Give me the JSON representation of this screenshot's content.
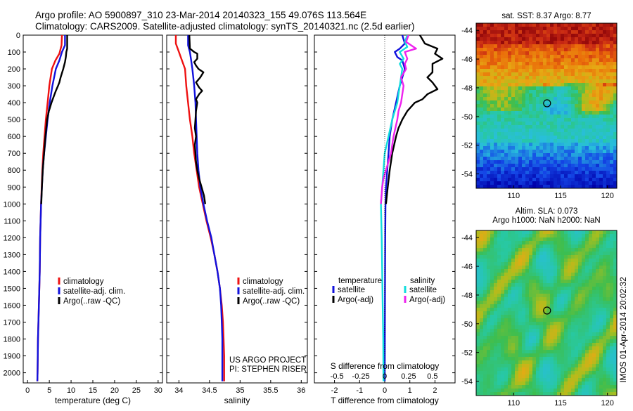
{
  "title_line1": "Argo profile: AO 5900897_310 23-Mar-2014 20140323_155 49.076S 113.564E",
  "title_line2": "Climatology: CARS2009. Satellite-adjusted climatology: synTS_20140321.nc (2.5d earlier)",
  "vertical_note": "IMOS 01-Apr-2014 20:02:32",
  "colors": {
    "climatology": "#ee1111",
    "satellite": "#1111dd",
    "argo": "#000000",
    "sat_salinity": "#11dddd",
    "argo_salinity": "#ee22ee"
  },
  "chart_data": [
    {
      "type": "line",
      "panel": "temperature",
      "xlabel": "temperature (deg C)",
      "xlim": [
        -1,
        31
      ],
      "ylim": [
        2060,
        0
      ],
      "xticks": [
        "0",
        "5",
        "10",
        "15",
        "20",
        "25",
        "30"
      ],
      "yticks": [
        "0",
        "100",
        "200",
        "300",
        "400",
        "500",
        "600",
        "700",
        "800",
        "900",
        "1000",
        "1100",
        "1200",
        "1300",
        "1400",
        "1500",
        "1600",
        "1700",
        "1800",
        "1900",
        "2000"
      ],
      "legend": [
        "climatology",
        "satellite-adj. clim.",
        "Argo(..raw -QC)"
      ],
      "series": [
        {
          "name": "climatology",
          "color": "climatology",
          "points": [
            [
              7.9,
              0
            ],
            [
              7.8,
              60
            ],
            [
              7.3,
              110
            ],
            [
              6.4,
              150
            ],
            [
              5.6,
              200
            ],
            [
              5.0,
              300
            ],
            [
              4.6,
              400
            ],
            [
              4.2,
              500
            ],
            [
              3.9,
              600
            ],
            [
              3.6,
              700
            ],
            [
              3.4,
              800
            ],
            [
              3.25,
              900
            ],
            [
              3.1,
              1000
            ],
            [
              2.9,
              1200
            ],
            [
              2.8,
              1400
            ],
            [
              2.6,
              1600
            ],
            [
              2.4,
              1800
            ],
            [
              2.3,
              2000
            ],
            [
              2.25,
              2050
            ]
          ]
        },
        {
          "name": "satellite-adj. clim.",
          "color": "satellite",
          "points": [
            [
              8.6,
              0
            ],
            [
              8.6,
              60
            ],
            [
              7.9,
              100
            ],
            [
              7.3,
              150
            ],
            [
              6.5,
              200
            ],
            [
              5.7,
              300
            ],
            [
              5.1,
              400
            ],
            [
              4.6,
              500
            ],
            [
              4.2,
              600
            ],
            [
              3.8,
              700
            ],
            [
              3.5,
              800
            ],
            [
              3.3,
              900
            ],
            [
              3.1,
              1000
            ],
            [
              2.9,
              1200
            ],
            [
              2.8,
              1400
            ],
            [
              2.6,
              1600
            ],
            [
              2.4,
              1800
            ],
            [
              2.3,
              2000
            ],
            [
              2.25,
              2050
            ]
          ]
        },
        {
          "name": "Argo(..raw -QC)",
          "color": "argo",
          "points": [
            [
              9.1,
              0
            ],
            [
              9.1,
              80
            ],
            [
              8.9,
              100
            ],
            [
              8.8,
              130
            ],
            [
              8.6,
              160
            ],
            [
              8.2,
              200
            ],
            [
              7.6,
              250
            ],
            [
              7.3,
              280
            ],
            [
              7.0,
              300
            ],
            [
              6.5,
              330
            ],
            [
              6.2,
              350
            ],
            [
              5.5,
              400
            ],
            [
              4.9,
              450
            ],
            [
              4.5,
              500
            ],
            [
              4.1,
              600
            ],
            [
              3.8,
              700
            ],
            [
              3.5,
              800
            ],
            [
              3.3,
              900
            ],
            [
              3.15,
              1000
            ]
          ]
        }
      ]
    },
    {
      "type": "line",
      "panel": "salinity",
      "xlabel": "salinity",
      "xlim": [
        33.8,
        36.1
      ],
      "ylim": [
        2060,
        0
      ],
      "xticks": [
        "34",
        "34.5",
        "35",
        "35.5",
        "36"
      ],
      "legend": [
        "climatology",
        "satellite-adj. clim.",
        "Argo(..raw -QC)"
      ],
      "annotation": [
        "US ARGO PROJECT",
        "PI: STEPHEN RISER"
      ],
      "series": [
        {
          "name": "climatology",
          "color": "climatology",
          "points": [
            [
              33.95,
              0
            ],
            [
              33.95,
              50
            ],
            [
              34.0,
              100
            ],
            [
              34.05,
              150
            ],
            [
              34.1,
              200
            ],
            [
              34.12,
              300
            ],
            [
              34.15,
              400
            ],
            [
              34.18,
              500
            ],
            [
              34.22,
              600
            ],
            [
              34.25,
              700
            ],
            [
              34.29,
              800
            ],
            [
              34.33,
              900
            ],
            [
              34.39,
              1000
            ],
            [
              34.45,
              1100
            ],
            [
              34.52,
              1200
            ],
            [
              34.58,
              1300
            ],
            [
              34.63,
              1400
            ],
            [
              34.67,
              1500
            ],
            [
              34.7,
              1600
            ],
            [
              34.72,
              1700
            ],
            [
              34.73,
              1800
            ],
            [
              34.74,
              1900
            ],
            [
              34.74,
              2050
            ]
          ]
        },
        {
          "name": "satellite-adj. clim.",
          "color": "satellite",
          "points": [
            [
              34.15,
              0
            ],
            [
              34.15,
              60
            ],
            [
              34.18,
              100
            ],
            [
              34.2,
              150
            ],
            [
              34.22,
              200
            ],
            [
              34.25,
              300
            ],
            [
              34.27,
              400
            ],
            [
              34.28,
              500
            ],
            [
              34.29,
              600
            ],
            [
              34.3,
              700
            ],
            [
              34.32,
              800
            ],
            [
              34.35,
              900
            ],
            [
              34.4,
              1000
            ],
            [
              34.46,
              1100
            ],
            [
              34.53,
              1200
            ],
            [
              34.58,
              1300
            ],
            [
              34.63,
              1400
            ],
            [
              34.67,
              1500
            ],
            [
              34.69,
              1600
            ],
            [
              34.7,
              1700
            ],
            [
              34.71,
              1800
            ],
            [
              34.71,
              1900
            ],
            [
              34.71,
              2050
            ]
          ]
        },
        {
          "name": "Argo(..raw -QC)",
          "color": "argo",
          "points": [
            [
              34.17,
              0
            ],
            [
              34.18,
              80
            ],
            [
              34.25,
              100
            ],
            [
              34.3,
              110
            ],
            [
              34.3,
              140
            ],
            [
              34.25,
              160
            ],
            [
              34.28,
              180
            ],
            [
              34.32,
              200
            ],
            [
              34.4,
              220
            ],
            [
              34.35,
              250
            ],
            [
              34.28,
              280
            ],
            [
              34.33,
              310
            ],
            [
              34.38,
              330
            ],
            [
              34.33,
              350
            ],
            [
              34.28,
              380
            ],
            [
              34.3,
              400
            ],
            [
              34.28,
              450
            ],
            [
              34.27,
              500
            ],
            [
              34.26,
              550
            ],
            [
              34.28,
              600
            ],
            [
              34.26,
              650
            ],
            [
              34.27,
              700
            ],
            [
              34.28,
              750
            ],
            [
              34.3,
              800
            ],
            [
              34.33,
              850
            ],
            [
              34.37,
              900
            ],
            [
              34.41,
              950
            ],
            [
              34.43,
              1000
            ]
          ]
        }
      ]
    },
    {
      "type": "line",
      "panel": "differences",
      "xlabel": "T difference from climatology",
      "xlabel2": "S difference from climatology",
      "xlim": [
        -2.8,
        2.8
      ],
      "ylim": [
        2060,
        0
      ],
      "xticks": [
        "-2",
        "-1",
        "0",
        "1",
        "2"
      ],
      "xticks2": [
        "-0.5",
        "-0.25",
        "0",
        "0.25",
        "0.5"
      ],
      "legend_temperature_title": "temperature",
      "legend_salinity_title": "salinity",
      "legend": [
        "satellite",
        "Argo(-adj)",
        "satellite",
        "Argo(-adj)"
      ],
      "series": [
        {
          "name": "satellite",
          "group": "temperature",
          "color": "satellite",
          "points": [
            [
              0.7,
              0
            ],
            [
              0.8,
              50
            ],
            [
              0.6,
              80
            ],
            [
              0.4,
              100
            ],
            [
              0.5,
              130
            ],
            [
              0.7,
              150
            ],
            [
              0.8,
              200
            ],
            [
              0.7,
              250
            ],
            [
              0.6,
              300
            ],
            [
              0.45,
              400
            ],
            [
              0.3,
              500
            ],
            [
              0.2,
              600
            ],
            [
              0.15,
              700
            ],
            [
              0.1,
              800
            ],
            [
              0.05,
              900
            ],
            [
              0.03,
              1000
            ],
            [
              0.02,
              1200
            ],
            [
              0.01,
              1500
            ],
            [
              0.0,
              2050
            ]
          ]
        },
        {
          "name": "Argo(-adj)",
          "group": "temperature",
          "color": "argo",
          "points": [
            [
              1.4,
              0
            ],
            [
              1.6,
              50
            ],
            [
              2.1,
              80
            ],
            [
              2.0,
              110
            ],
            [
              2.3,
              140
            ],
            [
              1.9,
              170
            ],
            [
              1.9,
              220
            ],
            [
              1.7,
              250
            ],
            [
              1.9,
              280
            ],
            [
              2.1,
              320
            ],
            [
              1.7,
              350
            ],
            [
              1.5,
              380
            ],
            [
              1.2,
              400
            ],
            [
              0.9,
              450
            ],
            [
              0.7,
              500
            ],
            [
              0.55,
              550
            ],
            [
              0.45,
              600
            ],
            [
              0.3,
              700
            ],
            [
              0.2,
              800
            ],
            [
              0.12,
              900
            ],
            [
              0.05,
              1000
            ]
          ]
        },
        {
          "name": "satellite",
          "group": "salinity",
          "color": "sat_salinity",
          "points": [
            [
              0.9,
              0
            ],
            [
              0.8,
              40
            ],
            [
              0.9,
              70
            ],
            [
              0.6,
              100
            ],
            [
              0.75,
              140
            ],
            [
              0.6,
              170
            ],
            [
              0.7,
              200
            ],
            [
              0.65,
              250
            ],
            [
              0.6,
              300
            ],
            [
              0.55,
              350
            ],
            [
              0.5,
              400
            ],
            [
              0.3,
              500
            ],
            [
              0.15,
              600
            ],
            [
              0.0,
              700
            ],
            [
              -0.05,
              800
            ],
            [
              -0.1,
              900
            ],
            [
              -0.15,
              1000
            ],
            [
              -0.12,
              1200
            ],
            [
              -0.1,
              1400
            ],
            [
              -0.08,
              1600
            ],
            [
              -0.06,
              1800
            ],
            [
              -0.05,
              2050
            ]
          ]
        },
        {
          "name": "Argo(-adj)",
          "group": "salinity",
          "color": "argo_salinity",
          "points": [
            [
              0.95,
              0
            ],
            [
              0.85,
              40
            ],
            [
              1.25,
              80
            ],
            [
              0.8,
              100
            ],
            [
              0.9,
              140
            ],
            [
              0.8,
              170
            ],
            [
              0.85,
              200
            ],
            [
              0.65,
              250
            ],
            [
              0.75,
              300
            ],
            [
              0.7,
              350
            ],
            [
              0.65,
              400
            ],
            [
              0.55,
              450
            ],
            [
              0.5,
              500
            ],
            [
              0.35,
              600
            ],
            [
              0.25,
              700
            ],
            [
              0.05,
              800
            ],
            [
              -0.05,
              850
            ],
            [
              -0.1,
              900
            ],
            [
              -0.15,
              1000
            ]
          ]
        }
      ]
    },
    {
      "type": "heatmap",
      "panel": "sst_map",
      "title": "sat. SST: 8.37  Argo: 8.77",
      "xlim": [
        106,
        121
      ],
      "ylim": [
        -55,
        -43.5
      ],
      "xticks": [
        "110",
        "115",
        "120"
      ],
      "yticks": [
        "-44",
        "-46",
        "-48",
        "-50",
        "-52",
        "-54"
      ],
      "marker": [
        113.56,
        -49.08
      ]
    },
    {
      "type": "heatmap",
      "panel": "sla_map",
      "title": "Altim. SLA: 0.073",
      "subtitle": "Argo h1000: NaN h2000: NaN",
      "xlim": [
        106,
        121
      ],
      "ylim": [
        -55,
        -43.5
      ],
      "xticks": [
        "110",
        "115",
        "120"
      ],
      "yticks": [
        "-44",
        "-46",
        "-48",
        "-50",
        "-52",
        "-54"
      ],
      "marker": [
        113.56,
        -49.08
      ]
    }
  ]
}
